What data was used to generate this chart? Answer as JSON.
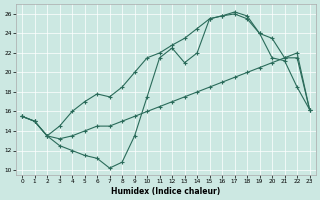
{
  "xlabel": "Humidex (Indice chaleur)",
  "bg_color": "#cce8e2",
  "line_color": "#2a6b5a",
  "xlim": [
    -0.5,
    23.5
  ],
  "ylim": [
    9.5,
    27.0
  ],
  "yticks": [
    10,
    12,
    14,
    16,
    18,
    20,
    22,
    24,
    26
  ],
  "xticks": [
    0,
    1,
    2,
    3,
    4,
    5,
    6,
    7,
    8,
    9,
    10,
    11,
    12,
    13,
    14,
    15,
    16,
    17,
    18,
    19,
    20,
    21,
    22,
    23
  ],
  "line_top_x": [
    0,
    1,
    2,
    3,
    4,
    5,
    6,
    7,
    8,
    9,
    10,
    11,
    12,
    13,
    14,
    15,
    16,
    17,
    18,
    19,
    20,
    21,
    22,
    23
  ],
  "line_top_y": [
    15.5,
    15.0,
    13.5,
    14.5,
    16.0,
    17.0,
    17.8,
    17.5,
    18.5,
    20.0,
    21.5,
    22.0,
    22.8,
    23.5,
    24.5,
    25.5,
    25.8,
    26.0,
    25.5,
    24.0,
    23.5,
    21.5,
    21.5,
    16.2
  ],
  "line_mid_x": [
    0,
    1,
    2,
    3,
    4,
    5,
    6,
    7,
    8,
    9,
    10,
    11,
    12,
    13,
    14,
    15,
    16,
    17,
    18,
    19,
    20,
    21,
    22,
    23
  ],
  "line_mid_y": [
    15.5,
    15.0,
    13.5,
    13.2,
    13.5,
    14.0,
    14.5,
    14.5,
    15.0,
    15.5,
    16.0,
    16.5,
    17.0,
    17.5,
    18.0,
    18.5,
    19.0,
    19.5,
    20.0,
    20.5,
    21.0,
    21.5,
    22.0,
    16.2
  ],
  "line_bot_x": [
    0,
    1,
    2,
    3,
    4,
    5,
    6,
    7,
    8,
    9,
    10,
    11,
    12,
    13,
    14,
    15,
    16,
    17,
    18,
    19,
    20,
    21,
    22,
    23
  ],
  "line_bot_y": [
    15.5,
    15.0,
    13.5,
    12.5,
    12.0,
    11.5,
    11.2,
    10.2,
    10.8,
    13.5,
    17.5,
    21.5,
    22.5,
    21.0,
    22.0,
    25.5,
    25.8,
    26.2,
    25.8,
    24.0,
    21.5,
    21.2,
    18.5,
    16.2
  ]
}
